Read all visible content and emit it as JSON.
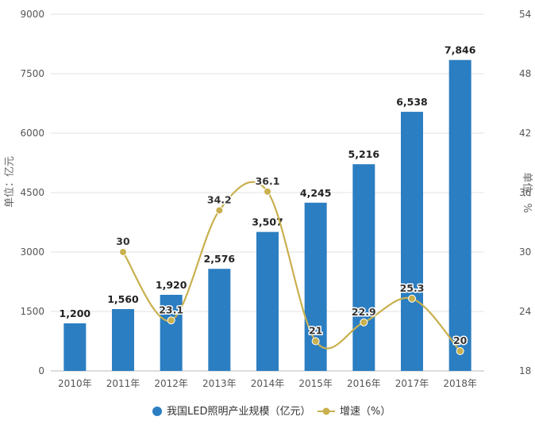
{
  "chart_data": {
    "type": "bar",
    "categories": [
      "2010年",
      "2011年",
      "2012年",
      "2013年",
      "2014年",
      "2015年",
      "2016年",
      "2017年",
      "2018年"
    ],
    "series": [
      {
        "name": "我国LED照明产业规模（亿元）",
        "type": "bar",
        "axis": "left",
        "color": "#2b7ec1",
        "values": [
          1200,
          1560,
          1920,
          2576,
          3507,
          4245,
          5216,
          6538,
          7846
        ],
        "labels": [
          "1,200",
          "1,560",
          "1,920",
          "2,576",
          "3,507",
          "4,245",
          "5,216",
          "6,538",
          "7,846"
        ]
      },
      {
        "name": "增速（%）",
        "type": "line",
        "smooth": true,
        "axis": "right",
        "color": "#c9b04e",
        "values": [
          null,
          30,
          23.1,
          34.2,
          36.1,
          21,
          22.9,
          25.3,
          20
        ],
        "labels": [
          "",
          "30",
          "23.1",
          "34.2",
          "36.1",
          "21",
          "22.9",
          "25.3",
          "20"
        ]
      }
    ],
    "ylabel": "单位：亿元",
    "y2label": "单位：%",
    "ylim": [
      0,
      9000
    ],
    "y2lim": [
      18,
      54
    ],
    "yticks": [
      "0",
      "1500",
      "3000",
      "4500",
      "6000",
      "7500",
      "9000"
    ],
    "y2ticks": [
      "18",
      "24",
      "30",
      "36",
      "42",
      "48",
      "54"
    ],
    "grid": true,
    "legend_position": "bottom"
  }
}
